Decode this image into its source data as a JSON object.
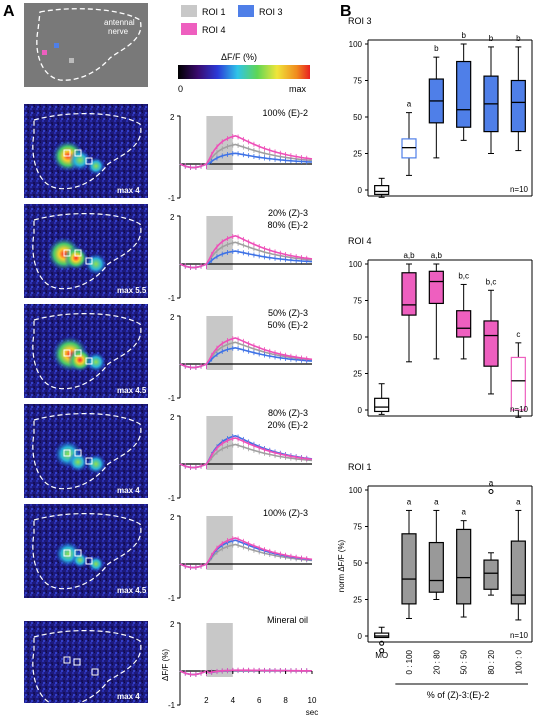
{
  "panels": {
    "A": "A",
    "B": "B"
  },
  "legend": {
    "items": [
      {
        "label": "ROI 1",
        "color": "#c8c8c8"
      },
      {
        "label": "ROI 3",
        "color": "#4f7fe8"
      },
      {
        "label": "ROI 4",
        "color": "#ee5fbf"
      }
    ],
    "colorbar": {
      "title": "ΔF/F (%)",
      "min_label": "0",
      "max_label": "max"
    }
  },
  "brain_images": {
    "top_label": "antennal\nnerve",
    "max_labels": [
      "max 4",
      "max 5.5",
      "max 4.5",
      "max 4",
      "max 4.5",
      "max 4"
    ]
  },
  "traces": {
    "stimuli": [
      [
        "100% (E)-2"
      ],
      [
        "20% (Z)-3",
        "80% (E)-2"
      ],
      [
        "50% (Z)-3",
        "50% (E)-2"
      ],
      [
        "80% (Z)-3",
        "20% (E)-2"
      ],
      [
        "100% (Z)-3"
      ],
      [
        "Mineral oil"
      ]
    ],
    "y_tick_top": "2",
    "y_tick_bottom": "-1",
    "y_label": "ΔF/F (%)",
    "x_ticks": [
      "2",
      "4",
      "6",
      "8",
      "10"
    ],
    "x_unit": "sec",
    "stimulus_window_sec": [
      2,
      4
    ]
  },
  "colors": {
    "roi1": "#a0a0a0",
    "roi3": "#3e72e6",
    "roi4": "#ee4fb8",
    "roi1_box": "#999999",
    "roi3_box": "#4f7fe8",
    "roi4_box": "#ee5fbf"
  },
  "chart_data": [
    {
      "type": "boxplot",
      "title": "ROI 3",
      "ylim": [
        0,
        100
      ],
      "y_ticks": [
        "0",
        "25",
        "50",
        "75",
        "100"
      ],
      "n_label": "n=10",
      "categories": [
        "MO",
        "0 : 100",
        "20 : 80",
        "50 : 50",
        "80 : 20",
        "100 : 0"
      ],
      "boxes": [
        {
          "whisker_low": -5,
          "q1": -3,
          "median": -1,
          "q3": 3,
          "whisker_high": 8,
          "letter": "",
          "filled": false
        },
        {
          "whisker_low": 10,
          "q1": 22,
          "median": 29,
          "q3": 35,
          "whisker_high": 53,
          "letter": "a",
          "filled": false
        },
        {
          "whisker_low": 22,
          "q1": 46,
          "median": 61,
          "q3": 76,
          "whisker_high": 91,
          "letter": "b",
          "filled": true
        },
        {
          "whisker_low": 34,
          "q1": 43,
          "median": 55,
          "q3": 88,
          "whisker_high": 100,
          "letter": "b",
          "filled": true
        },
        {
          "whisker_low": 25,
          "q1": 40,
          "median": 59,
          "q3": 78,
          "whisker_high": 98,
          "letter": "b",
          "filled": true
        },
        {
          "whisker_low": 27,
          "q1": 40,
          "median": 60,
          "q3": 75,
          "whisker_high": 98,
          "letter": "b",
          "filled": true
        }
      ]
    },
    {
      "type": "boxplot",
      "title": "ROI 4",
      "ylim": [
        0,
        100
      ],
      "y_ticks": [
        "0",
        "25",
        "50",
        "75",
        "100"
      ],
      "n_label": "n=10",
      "categories": [
        "MO",
        "0 : 100",
        "20 : 80",
        "50 : 50",
        "80 : 20",
        "100 : 0"
      ],
      "boxes": [
        {
          "whisker_low": -3,
          "q1": -1,
          "median": 2,
          "q3": 8,
          "whisker_high": 18,
          "letter": "",
          "filled": false
        },
        {
          "whisker_low": 33,
          "q1": 65,
          "median": 72,
          "q3": 94,
          "whisker_high": 100,
          "letter": "a,b",
          "filled": true
        },
        {
          "whisker_low": 35,
          "q1": 73,
          "median": 88,
          "q3": 95,
          "whisker_high": 100,
          "letter": "a,b",
          "filled": true
        },
        {
          "whisker_low": 35,
          "q1": 50,
          "median": 56,
          "q3": 68,
          "whisker_high": 86,
          "letter": "b,c",
          "filled": true
        },
        {
          "whisker_low": 11,
          "q1": 30,
          "median": 51,
          "q3": 61,
          "whisker_high": 82,
          "letter": "b,c",
          "filled": true
        },
        {
          "whisker_low": -5,
          "q1": 0,
          "median": 20,
          "q3": 36,
          "whisker_high": 46,
          "letter": "c",
          "filled": false
        }
      ]
    },
    {
      "type": "boxplot",
      "title": "ROI 1",
      "ylim": [
        0,
        100
      ],
      "y_ticks": [
        "0",
        "25",
        "50",
        "75",
        "100"
      ],
      "ylabel": "norm ΔF/F (%)",
      "xlabel": "% of (Z)-3:(E)-2",
      "n_label": "n=10",
      "categories": [
        "MO",
        "0 : 100",
        "20 : 80",
        "50 : 50",
        "80 : 20",
        "100 : 0"
      ],
      "boxes": [
        {
          "whisker_low": -1,
          "q1": -1,
          "median": 0,
          "q3": 2,
          "whisker_high": 6,
          "outliers": [
            -10,
            -5
          ],
          "letter": "",
          "filled": false
        },
        {
          "whisker_low": 12,
          "q1": 22,
          "median": 39,
          "q3": 70,
          "whisker_high": 86,
          "letter": "a",
          "filled": true
        },
        {
          "whisker_low": 25,
          "q1": 30,
          "median": 38,
          "q3": 64,
          "whisker_high": 86,
          "letter": "a",
          "filled": true
        },
        {
          "whisker_low": 13,
          "q1": 22,
          "median": 40,
          "q3": 73,
          "whisker_high": 79,
          "letter": "a",
          "filled": true
        },
        {
          "whisker_low": 28,
          "q1": 32,
          "median": 43,
          "q3": 52,
          "whisker_high": 57,
          "outliers": [
            99
          ],
          "letter": "a",
          "filled": true
        },
        {
          "whisker_low": 11,
          "q1": 22,
          "median": 28,
          "q3": 65,
          "whisker_high": 86,
          "letter": "a",
          "filled": true
        }
      ]
    }
  ]
}
